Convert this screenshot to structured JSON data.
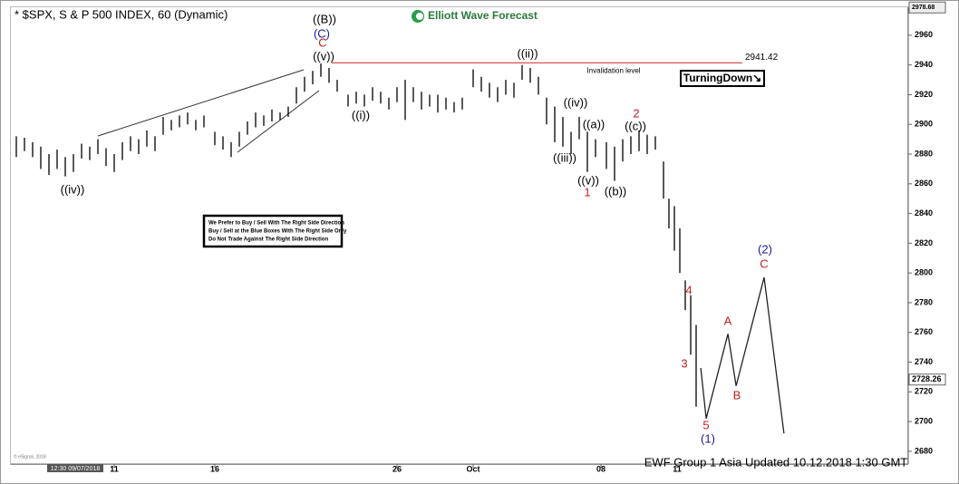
{
  "chart_data": {
    "type": "ohlc",
    "title": "* $SPX, S & P 500 INDEX, 60 (Dynamic)",
    "logo": "Elliott Wave Forecast",
    "badge": "TurningDown↘",
    "notice": [
      "We Prefer to Buy / Sell With The Right Side Direction",
      "Buy / Sell at the Blue Boxes With The Right Side Only",
      "Do Not Trade Against The Right Side Direction"
    ],
    "footer": "EWF Group 1 Asia Updated 10.12.2018 1:30 GMT",
    "copyright": "© eSignal, 2018",
    "start_label": "12:30 09/07/2018",
    "xlim": [
      0,
      330
    ],
    "ylim": [
      2672,
      2977
    ],
    "xticks": [
      {
        "value": 38,
        "label": "11"
      },
      {
        "value": 75,
        "label": "16"
      },
      {
        "value": 142,
        "label": "26"
      },
      {
        "value": 170,
        "label": "Oct"
      },
      {
        "value": 217,
        "label": "08"
      },
      {
        "value": 245,
        "label": "11"
      }
    ],
    "yticks": [
      2680,
      2700,
      2720,
      2740,
      2760,
      2780,
      2800,
      2820,
      2840,
      2860,
      2880,
      2900,
      2920,
      2940,
      2960
    ],
    "top_price": 2978.68,
    "last_price": 2728.26,
    "invalidation": {
      "value": 2941.42,
      "label": "Invalidation level",
      "color": "#d04040"
    },
    "bar_color": "#000000",
    "bars": [
      {
        "x": 2,
        "high": 2892,
        "low": 2878
      },
      {
        "x": 5,
        "high": 2891,
        "low": 2882
      },
      {
        "x": 8,
        "high": 2888,
        "low": 2878
      },
      {
        "x": 11,
        "high": 2885,
        "low": 2870
      },
      {
        "x": 14,
        "high": 2880,
        "low": 2866
      },
      {
        "x": 17,
        "high": 2883,
        "low": 2870
      },
      {
        "x": 20,
        "high": 2878,
        "low": 2865
      },
      {
        "x": 23,
        "high": 2880,
        "low": 2868
      },
      {
        "x": 26,
        "high": 2887,
        "low": 2877
      },
      {
        "x": 29,
        "high": 2885,
        "low": 2876
      },
      {
        "x": 32,
        "high": 2890,
        "low": 2880
      },
      {
        "x": 35,
        "high": 2884,
        "low": 2872
      },
      {
        "x": 38,
        "high": 2880,
        "low": 2868
      },
      {
        "x": 41,
        "high": 2888,
        "low": 2876
      },
      {
        "x": 44,
        "high": 2892,
        "low": 2882
      },
      {
        "x": 47,
        "high": 2890,
        "low": 2880
      },
      {
        "x": 50,
        "high": 2896,
        "low": 2885
      },
      {
        "x": 53,
        "high": 2892,
        "low": 2882
      },
      {
        "x": 56,
        "high": 2905,
        "low": 2893
      },
      {
        "x": 59,
        "high": 2903,
        "low": 2896
      },
      {
        "x": 62,
        "high": 2906,
        "low": 2898
      },
      {
        "x": 65,
        "high": 2908,
        "low": 2900
      },
      {
        "x": 68,
        "high": 2903,
        "low": 2896
      },
      {
        "x": 71,
        "high": 2906,
        "low": 2898
      },
      {
        "x": 75,
        "high": 2895,
        "low": 2886
      },
      {
        "x": 78,
        "high": 2892,
        "low": 2883
      },
      {
        "x": 81,
        "high": 2888,
        "low": 2878
      },
      {
        "x": 84,
        "high": 2895,
        "low": 2885
      },
      {
        "x": 87,
        "high": 2902,
        "low": 2893
      },
      {
        "x": 90,
        "high": 2908,
        "low": 2898
      },
      {
        "x": 93,
        "high": 2906,
        "low": 2899
      },
      {
        "x": 96,
        "high": 2910,
        "low": 2902
      },
      {
        "x": 99,
        "high": 2908,
        "low": 2903
      },
      {
        "x": 102,
        "high": 2912,
        "low": 2905
      },
      {
        "x": 105,
        "high": 2925,
        "low": 2914
      },
      {
        "x": 108,
        "high": 2932,
        "low": 2922
      },
      {
        "x": 111,
        "high": 2936,
        "low": 2927
      },
      {
        "x": 114,
        "high": 2941,
        "low": 2932
      },
      {
        "x": 117,
        "high": 2938,
        "low": 2928
      },
      {
        "x": 120,
        "high": 2930,
        "low": 2922
      },
      {
        "x": 124,
        "high": 2920,
        "low": 2912
      },
      {
        "x": 127,
        "high": 2922,
        "low": 2914
      },
      {
        "x": 130,
        "high": 2920,
        "low": 2912
      },
      {
        "x": 133,
        "high": 2925,
        "low": 2916
      },
      {
        "x": 136,
        "high": 2922,
        "low": 2914
      },
      {
        "x": 139,
        "high": 2918,
        "low": 2910
      },
      {
        "x": 142,
        "high": 2925,
        "low": 2915
      },
      {
        "x": 145,
        "high": 2930,
        "low": 2903
      },
      {
        "x": 148,
        "high": 2925,
        "low": 2915
      },
      {
        "x": 151,
        "high": 2922,
        "low": 2910
      },
      {
        "x": 154,
        "high": 2920,
        "low": 2912
      },
      {
        "x": 157,
        "high": 2920,
        "low": 2908
      },
      {
        "x": 160,
        "high": 2918,
        "low": 2910
      },
      {
        "x": 163,
        "high": 2915,
        "low": 2908
      },
      {
        "x": 166,
        "high": 2918,
        "low": 2910
      },
      {
        "x": 170,
        "high": 2937,
        "low": 2925
      },
      {
        "x": 173,
        "high": 2932,
        "low": 2922
      },
      {
        "x": 176,
        "high": 2928,
        "low": 2918
      },
      {
        "x": 179,
        "high": 2925,
        "low": 2915
      },
      {
        "x": 182,
        "high": 2930,
        "low": 2920
      },
      {
        "x": 185,
        "high": 2928,
        "low": 2918
      },
      {
        "x": 188,
        "high": 2940,
        "low": 2930
      },
      {
        "x": 191,
        "high": 2938,
        "low": 2928
      },
      {
        "x": 194,
        "high": 2932,
        "low": 2920
      },
      {
        "x": 197,
        "high": 2918,
        "low": 2900
      },
      {
        "x": 200,
        "high": 2912,
        "low": 2888
      },
      {
        "x": 203,
        "high": 2905,
        "low": 2885
      },
      {
        "x": 206,
        "high": 2895,
        "low": 2880
      },
      {
        "x": 209,
        "high": 2905,
        "low": 2890
      },
      {
        "x": 212,
        "high": 2895,
        "low": 2868
      },
      {
        "x": 215,
        "high": 2890,
        "low": 2878
      },
      {
        "x": 219,
        "high": 2888,
        "low": 2870
      },
      {
        "x": 222,
        "high": 2885,
        "low": 2862
      },
      {
        "x": 225,
        "high": 2890,
        "low": 2875
      },
      {
        "x": 228,
        "high": 2892,
        "low": 2880
      },
      {
        "x": 231,
        "high": 2896,
        "low": 2882
      },
      {
        "x": 234,
        "high": 2893,
        "low": 2880
      },
      {
        "x": 237,
        "high": 2892,
        "low": 2883
      },
      {
        "x": 240,
        "high": 2875,
        "low": 2850
      },
      {
        "x": 242,
        "high": 2850,
        "low": 2830
      },
      {
        "x": 244,
        "high": 2845,
        "low": 2815
      },
      {
        "x": 246,
        "high": 2830,
        "low": 2800
      },
      {
        "x": 248,
        "high": 2795,
        "low": 2775
      },
      {
        "x": 250,
        "high": 2785,
        "low": 2745
      },
      {
        "x": 252,
        "high": 2765,
        "low": 2710
      }
    ],
    "projection": {
      "color": "#222222",
      "x": [
        253.7,
        255.7,
        263.7,
        266.7,
        277,
        284.3
      ],
      "values": [
        2736,
        2702,
        2759,
        2724,
        2797,
        2692
      ]
    },
    "annotations": [
      {
        "text": "((B))",
        "color": "#000000"
      },
      {
        "text": "(C)",
        "color": "#1a1aa0"
      },
      {
        "text": "C",
        "color": "#c02020"
      },
      {
        "text": "((v))",
        "color": "#000000"
      },
      {
        "text": "((iv))",
        "color": "#000000"
      },
      {
        "text": "((i))",
        "color": "#000000"
      },
      {
        "text": "((ii))",
        "color": "#000000"
      },
      {
        "text": "((iv))",
        "color": "#000000"
      },
      {
        "text": "((a))",
        "color": "#000000"
      },
      {
        "text": "((iii))",
        "color": "#000000"
      },
      {
        "text": "((v))",
        "color": "#000000"
      },
      {
        "text": "1",
        "color": "#c02020"
      },
      {
        "text": "((b))",
        "color": "#000000"
      },
      {
        "text": "2",
        "color": "#c02020"
      },
      {
        "text": "((c))",
        "color": "#000000"
      },
      {
        "text": "4",
        "color": "#c02020"
      },
      {
        "text": "3",
        "color": "#c02020"
      },
      {
        "text": "A",
        "color": "#c02020"
      },
      {
        "text": "B",
        "color": "#c02020"
      },
      {
        "text": "5",
        "color": "#c02020"
      },
      {
        "text": "(1)",
        "color": "#1a1aa0"
      },
      {
        "text": "(2)",
        "color": "#1a1aa0"
      },
      {
        "text": "C",
        "color": "#c02020"
      }
    ]
  }
}
